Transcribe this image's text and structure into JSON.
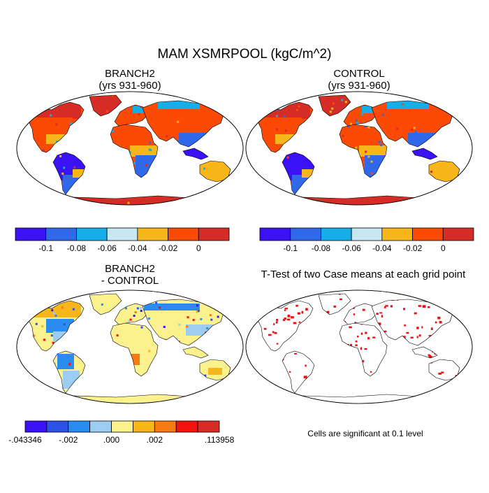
{
  "chart_data": {
    "type": "heatmap",
    "title": "MAM XSMRPOOL (kgC/m^2)",
    "panels": [
      {
        "title_lines": [
          "BRANCH2",
          "(yrs 931-960)"
        ],
        "colorbar": {
          "colors": [
            "#3b12f5",
            "#2f68e8",
            "#16aee8",
            "#c8e7f3",
            "#f7b619",
            "#fa4a06",
            "#d52d25"
          ],
          "labels": [
            "-0.1",
            "-0.08",
            "-0.06",
            "-0.04",
            "-0.02",
            "0"
          ]
        }
      },
      {
        "title_lines": [
          "CONTROL",
          "(yrs 931-960)"
        ],
        "colorbar": {
          "colors": [
            "#3b12f5",
            "#2f68e8",
            "#16aee8",
            "#c8e7f3",
            "#f7b619",
            "#fa4a06",
            "#d52d25"
          ],
          "labels": [
            "-0.1",
            "-0.08",
            "-0.06",
            "-0.04",
            "-0.02",
            "0"
          ]
        }
      },
      {
        "title_lines": [
          "BRANCH2",
          "- CONTROL"
        ],
        "colorbar": {
          "colors": [
            "#3b12f5",
            "#2e51e6",
            "#2a8cee",
            "#9ccdf0",
            "#fbf28e",
            "#f7b619",
            "#f67a12",
            "#f2130c",
            "#d52d25"
          ],
          "labels": [
            "-.043346",
            "-.002",
            ".000",
            ".002",
            ".113958"
          ]
        }
      },
      {
        "title_lines": [
          "T-Test of two Case means at each grid point"
        ],
        "note": "Cells are significant at 0.1 level",
        "significance_color": "#ee1111"
      }
    ]
  }
}
